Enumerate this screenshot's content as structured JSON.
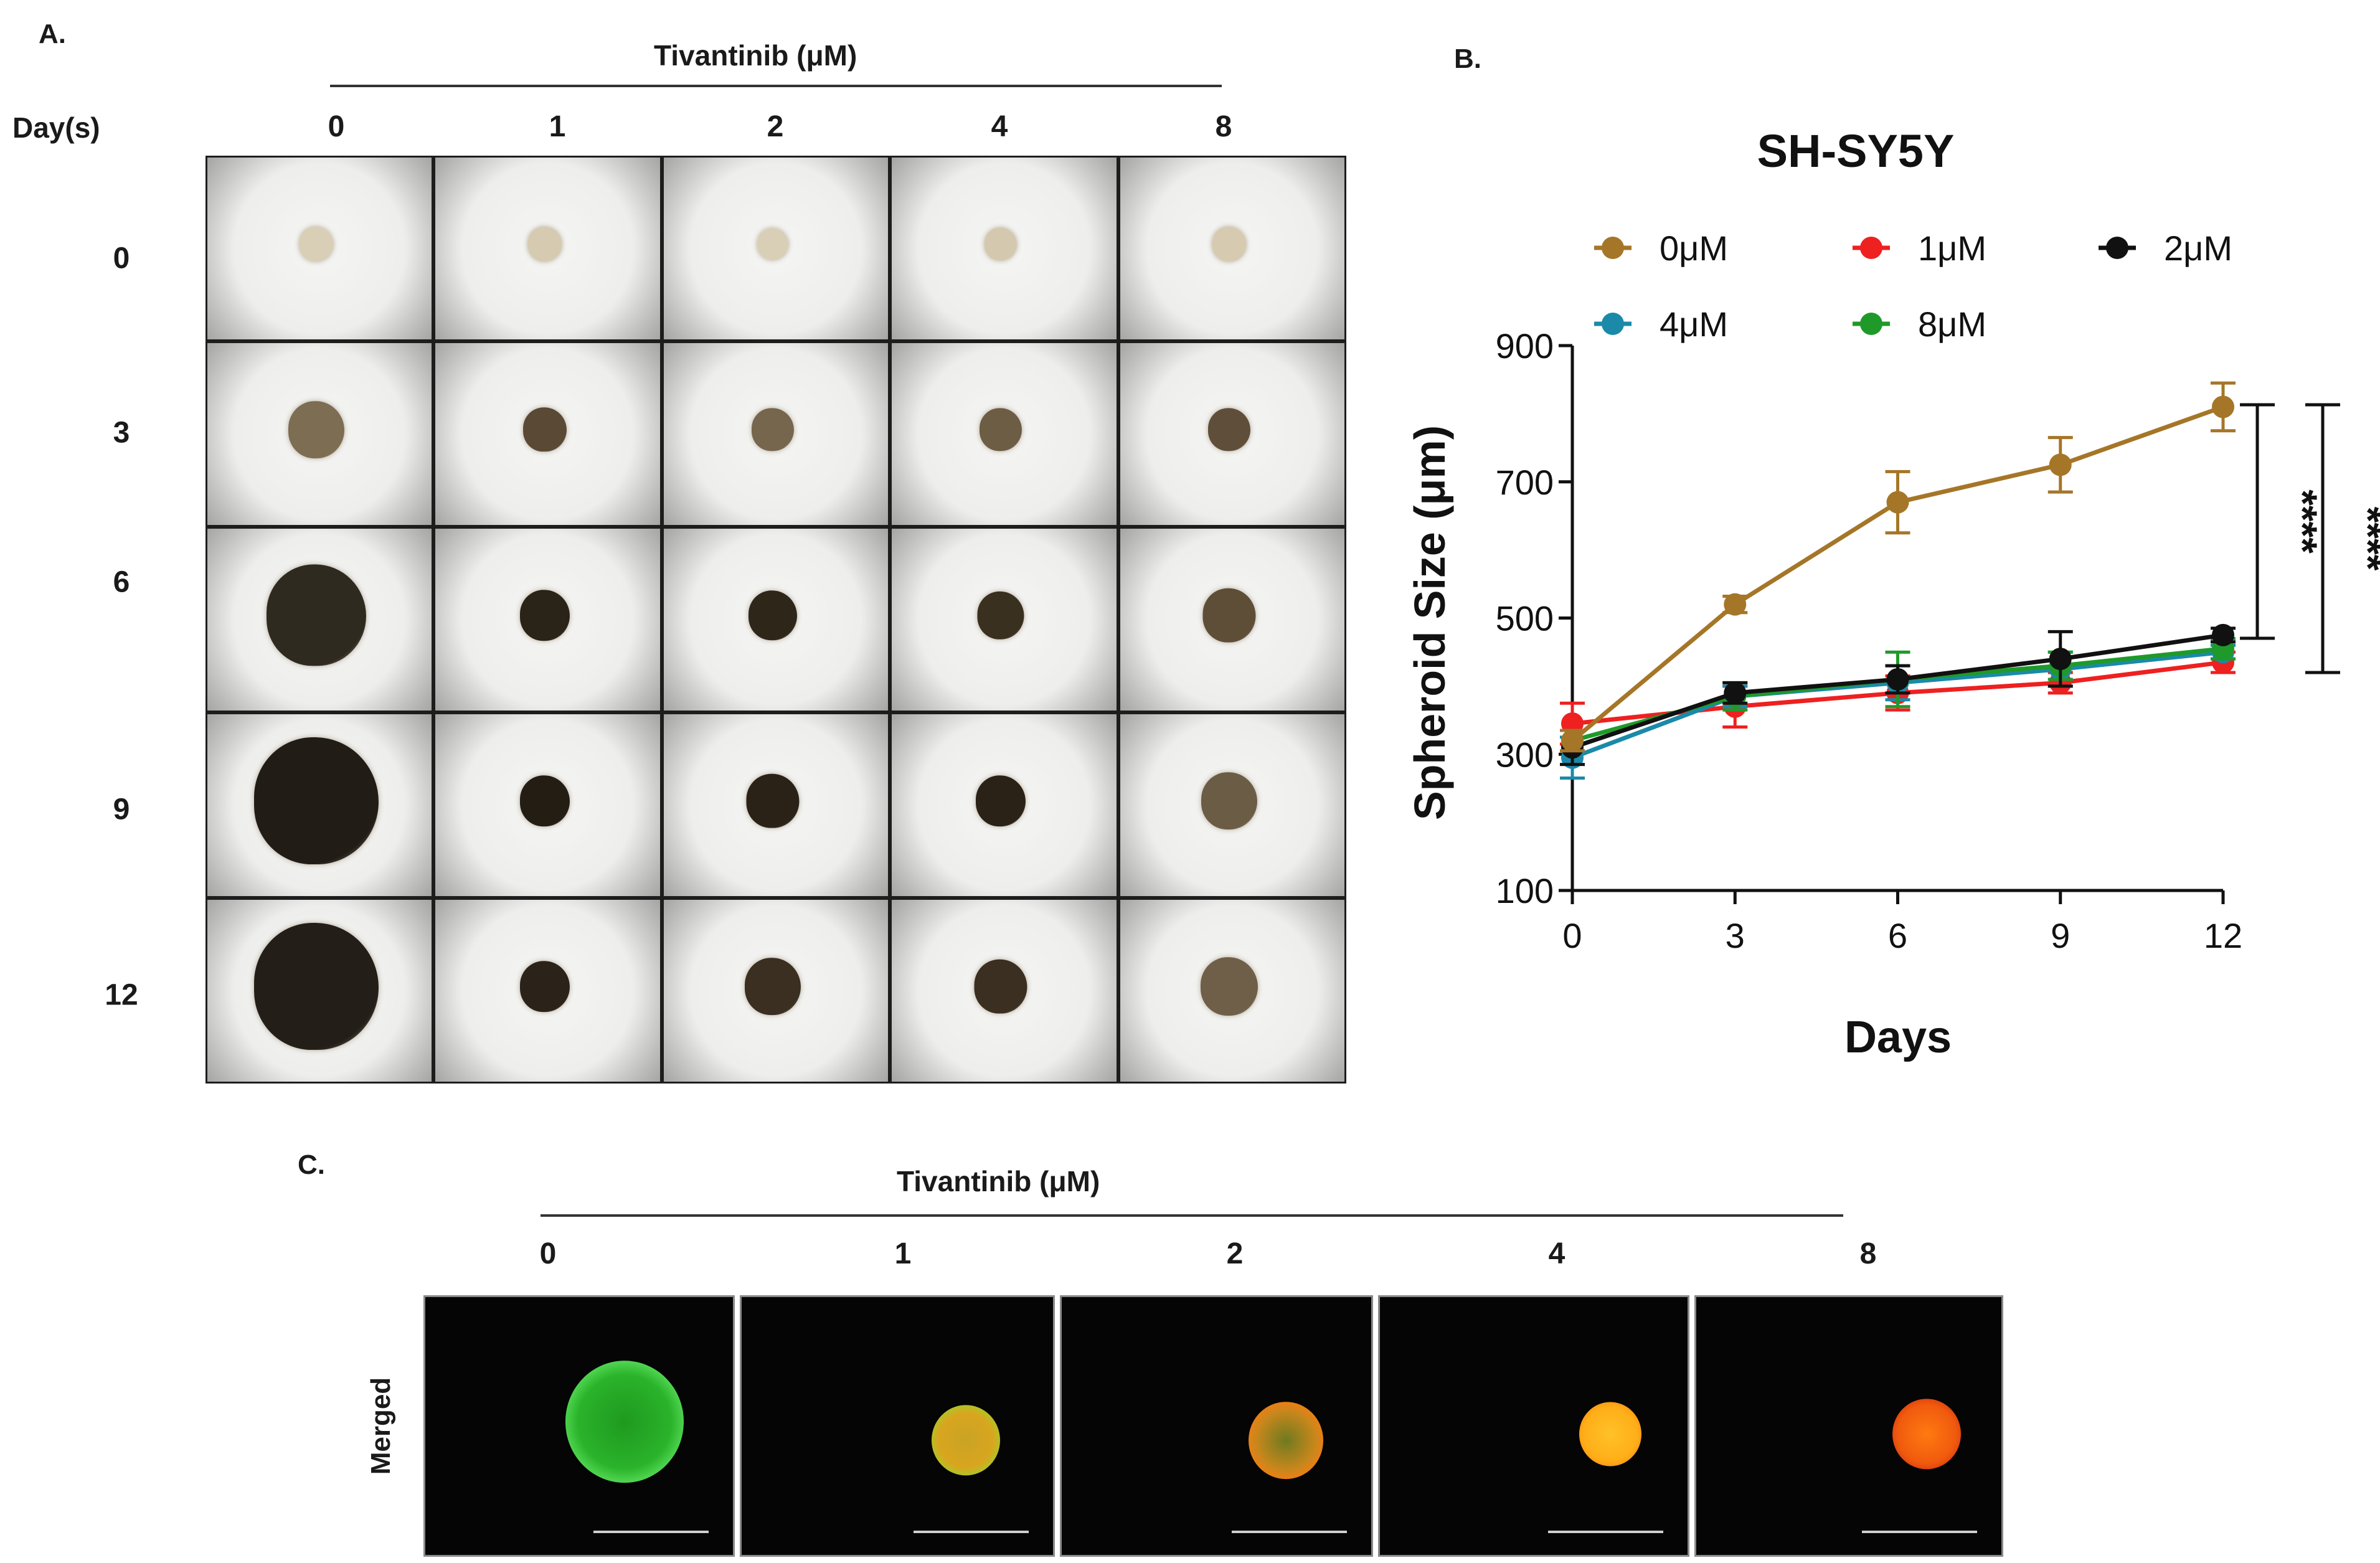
{
  "panel_a": {
    "letter": "A.",
    "header": "Tivantinib (μM)",
    "row_header": "Day(s)",
    "columns": [
      "0",
      "1",
      "2",
      "4",
      "8"
    ],
    "rows": [
      "0",
      "3",
      "6",
      "9",
      "12"
    ]
  },
  "panel_b": {
    "letter": "B.",
    "significance_1": "****",
    "significance_2": "****"
  },
  "panel_c": {
    "letter": "C.",
    "header": "Tivantinib (μM)",
    "columns": [
      "0",
      "1",
      "2",
      "4",
      "8"
    ],
    "row_label": "Merged"
  },
  "colors": {
    "0uM": "#a57628",
    "1uM": "#ee2020",
    "2uM": "#111111",
    "4uM": "#1a8aa8",
    "8uM": "#1f9a2a"
  },
  "chart_data": {
    "type": "line",
    "title": "SH-SY5Y",
    "xlabel": "Days",
    "ylabel": "Spheroid Size (μm)",
    "x": [
      0,
      3,
      6,
      9,
      12
    ],
    "xticks": [
      "0",
      "3",
      "6",
      "9",
      "12"
    ],
    "yticks": [
      "100",
      "300",
      "500",
      "700",
      "900"
    ],
    "xlim": [
      0,
      12
    ],
    "ylim": [
      100,
      900
    ],
    "legend_position": "top",
    "series": [
      {
        "name": "0μM",
        "color": "#a57628",
        "values": [
          320,
          520,
          670,
          725,
          810
        ],
        "errors": [
          15,
          12,
          45,
          40,
          35
        ]
      },
      {
        "name": "1μM",
        "color": "#ee2020",
        "values": [
          345,
          370,
          390,
          405,
          435
        ],
        "errors": [
          30,
          30,
          25,
          15,
          15
        ]
      },
      {
        "name": "2μM",
        "color": "#111111",
        "values": [
          310,
          390,
          410,
          440,
          475
        ],
        "errors": [
          25,
          15,
          20,
          40,
          10
        ]
      },
      {
        "name": "4μM",
        "color": "#1a8aa8",
        "values": [
          295,
          385,
          405,
          425,
          450
        ],
        "errors": [
          30,
          15,
          25,
          25,
          10
        ]
      },
      {
        "name": "8μM",
        "color": "#1f9a2a",
        "values": [
          320,
          385,
          410,
          430,
          455
        ],
        "errors": [
          15,
          20,
          40,
          20,
          15
        ]
      }
    ]
  }
}
